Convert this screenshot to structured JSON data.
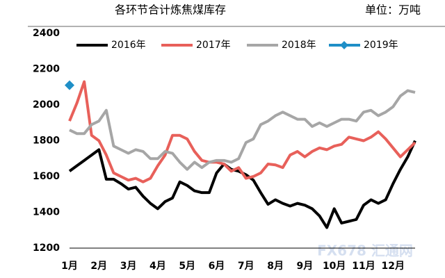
{
  "chart_data": {
    "type": "line",
    "title": "各环节合计炼焦煤库存",
    "unit": "单位：万吨",
    "watermark": "FX678 汇通网",
    "categories": [
      "1月",
      null,
      null,
      null,
      "2月",
      null,
      null,
      null,
      "3月",
      null,
      null,
      null,
      "4月",
      null,
      null,
      null,
      "5月",
      null,
      null,
      null,
      "6月",
      null,
      null,
      null,
      "7月",
      null,
      null,
      null,
      "8月",
      null,
      null,
      null,
      "9月",
      null,
      null,
      null,
      "10月",
      null,
      null,
      null,
      "11月",
      null,
      null,
      null,
      "12月",
      null,
      null,
      null
    ],
    "ylim": [
      1200,
      2400
    ],
    "yticks": [
      1200,
      1400,
      1600,
      1800,
      2000,
      2200,
      2400
    ],
    "series": [
      {
        "name": "2016年",
        "color": "#000000",
        "values": [
          1630,
          1660,
          1690,
          1720,
          1750,
          1585,
          1585,
          1560,
          1530,
          1540,
          1490,
          1450,
          1420,
          1460,
          1480,
          1570,
          1550,
          1520,
          1510,
          1510,
          1620,
          1670,
          1640,
          1630,
          1610,
          1580,
          1510,
          1445,
          1470,
          1450,
          1435,
          1450,
          1440,
          1420,
          1380,
          1315,
          1420,
          1340,
          1350,
          1360,
          1440,
          1470,
          1450,
          1470,
          1560,
          1640,
          1710,
          1800
        ]
      },
      {
        "name": "2017年",
        "color": "#e8605a",
        "values": [
          1910,
          2010,
          2130,
          1830,
          1800,
          1720,
          1620,
          1600,
          1580,
          1590,
          1570,
          1590,
          1660,
          1720,
          1830,
          1830,
          1810,
          1740,
          1690,
          1680,
          1680,
          1670,
          1630,
          1650,
          1590,
          1600,
          1620,
          1670,
          1665,
          1650,
          1720,
          1740,
          1710,
          1740,
          1760,
          1750,
          1770,
          1780,
          1820,
          1810,
          1800,
          1820,
          1850,
          1810,
          1760,
          1710,
          1750,
          1790
        ]
      },
      {
        "name": "2018年",
        "color": "#a6a6a6",
        "values": [
          1860,
          1840,
          1840,
          1890,
          1910,
          1970,
          1770,
          1750,
          1730,
          1750,
          1740,
          1700,
          1700,
          1740,
          1730,
          1680,
          1640,
          1680,
          1650,
          1680,
          1690,
          1690,
          1680,
          1700,
          1790,
          1810,
          1890,
          1910,
          1940,
          1960,
          1940,
          1920,
          1920,
          1880,
          1900,
          1880,
          1900,
          1920,
          1920,
          1910,
          1960,
          1970,
          1940,
          1960,
          1990,
          2050,
          2080,
          2070
        ]
      },
      {
        "name": "2019年",
        "color": "#1f8fc7",
        "marker": "diamond",
        "values": [
          2110,
          null,
          null,
          null,
          null,
          null,
          null,
          null,
          null,
          null,
          null,
          null,
          null,
          null,
          null,
          null,
          null,
          null,
          null,
          null,
          null,
          null,
          null,
          null,
          null,
          null,
          null,
          null,
          null,
          null,
          null,
          null,
          null,
          null,
          null,
          null,
          null,
          null,
          null,
          null,
          null,
          null,
          null,
          null,
          null,
          null,
          null,
          null
        ]
      }
    ]
  }
}
